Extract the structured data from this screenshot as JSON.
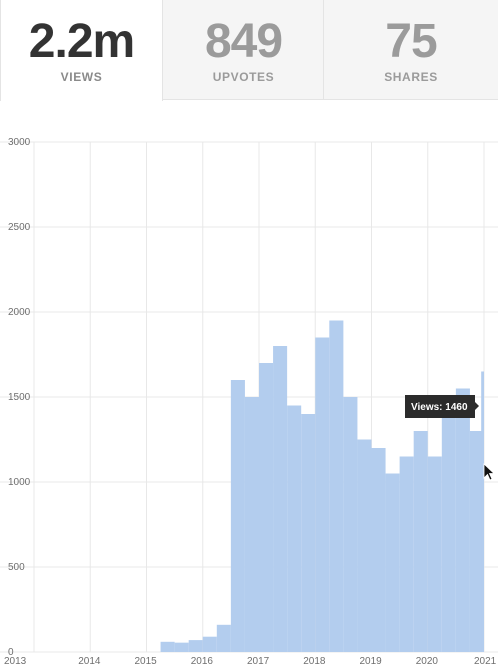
{
  "stats": [
    {
      "value": "2.2m",
      "label": "VIEWS",
      "active": true
    },
    {
      "value": "849",
      "label": "UPVOTES",
      "active": false
    },
    {
      "value": "75",
      "label": "SHARES",
      "active": false
    }
  ],
  "colors": {
    "bar": "#b3cdee",
    "grid": "#e8e8e8",
    "tooltip_bg": "#2b2b2b"
  },
  "tooltip": {
    "text": "Views: 1460"
  },
  "chart_data": {
    "type": "bar",
    "title": "",
    "xlabel": "",
    "ylabel": "",
    "ylim": [
      0,
      3000
    ],
    "xlim": [
      2013.0,
      2021.0
    ],
    "grid": true,
    "y_ticks": [
      "0",
      "500",
      "1000",
      "1500",
      "2000",
      "2500",
      "3000"
    ],
    "x_ticks": [
      "2013",
      "2014",
      "2015",
      "2016",
      "2017",
      "2018",
      "2019",
      "2020",
      "2021"
    ],
    "series": [
      {
        "x": [
          2015.25,
          2015.5,
          2015.75,
          2016.0,
          2016.25,
          2016.5,
          2016.75,
          2017.0,
          2017.25,
          2017.5,
          2017.75,
          2018.0,
          2018.25,
          2018.5,
          2018.75,
          2019.0,
          2019.25,
          2019.5,
          2019.75,
          2020.0,
          2020.25,
          2020.5,
          2020.75,
          2020.95
        ],
        "values": [
          60,
          55,
          70,
          90,
          160,
          1600,
          1500,
          1700,
          1800,
          1450,
          1400,
          1850,
          1950,
          1500,
          1250,
          1200,
          1050,
          1150,
          1300,
          1150,
          1400,
          1550,
          1300,
          1650
        ]
      }
    ]
  }
}
